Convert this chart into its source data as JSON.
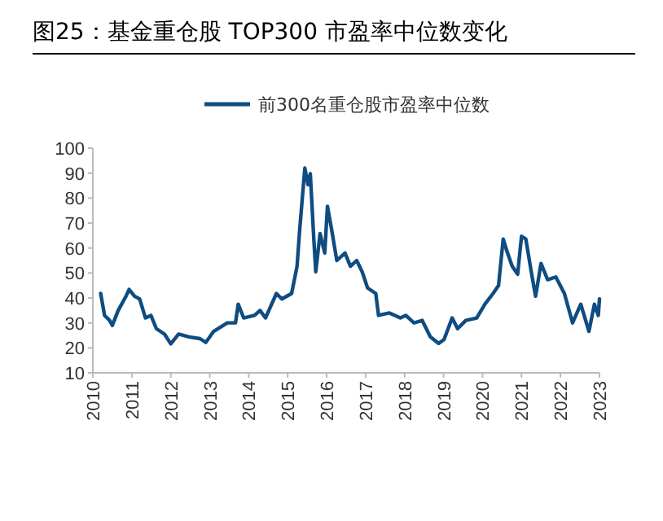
{
  "chart_data": {
    "type": "line",
    "title": "图25：基金重仓股 TOP300 市盈率中位数变化",
    "series": [
      {
        "name": "前300名重仓股市盈率中位数",
        "color": "#0f4c81",
        "x": [
          2010.2,
          2010.3,
          2010.43,
          2010.5,
          2010.65,
          2010.86,
          2010.93,
          2011.07,
          2011.2,
          2011.35,
          2011.49,
          2011.63,
          2011.84,
          2012.0,
          2012.2,
          2012.47,
          2012.75,
          2012.9,
          2013.1,
          2013.45,
          2013.66,
          2013.73,
          2013.87,
          2014.15,
          2014.29,
          2014.43,
          2014.71,
          2014.85,
          2015.1,
          2015.24,
          2015.3,
          2015.38,
          2015.44,
          2015.52,
          2015.58,
          2015.67,
          2015.72,
          2015.83,
          2015.95,
          2016.02,
          2016.12,
          2016.26,
          2016.47,
          2016.61,
          2016.77,
          2016.91,
          2017.05,
          2017.26,
          2017.33,
          2017.61,
          2017.89,
          2018.03,
          2018.24,
          2018.45,
          2018.66,
          2018.87,
          2019.01,
          2019.22,
          2019.36,
          2019.57,
          2019.85,
          2020.06,
          2020.27,
          2020.41,
          2020.53,
          2020.62,
          2020.76,
          2020.9,
          2021.0,
          2021.11,
          2021.25,
          2021.36,
          2021.5,
          2021.67,
          2021.88,
          2022.1,
          2022.31,
          2022.52,
          2022.73,
          2022.87,
          2022.97,
          2023.0
        ],
        "values": [
          41.8,
          33,
          31,
          29,
          35,
          41,
          43.4,
          40.7,
          39.6,
          32,
          33,
          27.7,
          25.5,
          21.6,
          25.5,
          24.4,
          23.7,
          22.2,
          26.6,
          30,
          30,
          37.5,
          32,
          33,
          35,
          32,
          41.8,
          39.6,
          41.8,
          52.7,
          65.8,
          81,
          92,
          85.4,
          89.8,
          63.6,
          50.5,
          65.8,
          58,
          76.7,
          68,
          55,
          58,
          52.7,
          55,
          50.5,
          44,
          41.8,
          33,
          34,
          32,
          33,
          30,
          31,
          24.4,
          21.8,
          23.3,
          32,
          27.7,
          31,
          32,
          37.5,
          41.8,
          45,
          63.6,
          59,
          52.7,
          49.5,
          64.7,
          63.6,
          50.5,
          40.7,
          53.8,
          47.3,
          48.4,
          41.8,
          30,
          37.5,
          26.6,
          37.5,
          33,
          39.6
        ]
      }
    ],
    "xlim": [
      2010,
      2023
    ],
    "xticks": [
      2010,
      2011,
      2012,
      2013,
      2014,
      2015,
      2016,
      2017,
      2018,
      2019,
      2020,
      2021,
      2022,
      2023
    ],
    "ylim": [
      10,
      100
    ],
    "yticks": [
      10,
      20,
      30,
      40,
      50,
      60,
      70,
      80,
      90,
      100
    ],
    "legend": "top",
    "grid": false
  }
}
